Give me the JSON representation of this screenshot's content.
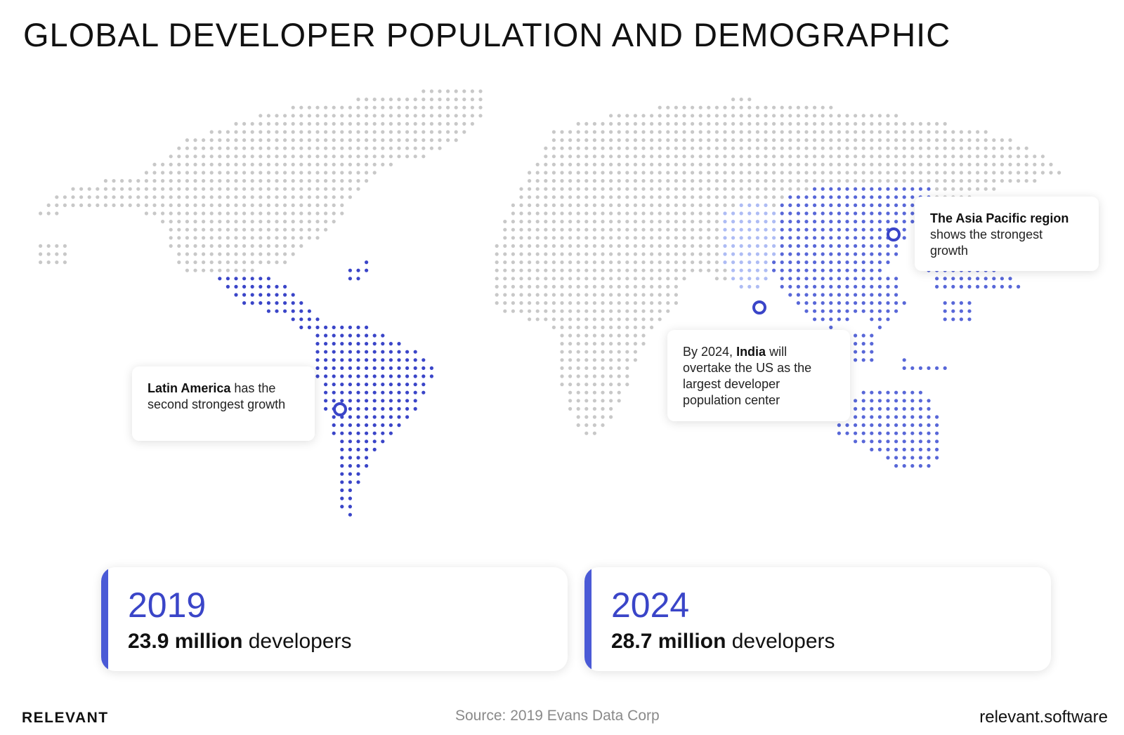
{
  "title": "GLOBAL DEVELOPER POPULATION AND DEMOGRAPHIC",
  "colors": {
    "land": "#c8c8c8",
    "latin_america": "#3a45c8",
    "asia_pacific": "#5867d8",
    "india": "#aebcf4",
    "accent_bar": "#4a5ad6"
  },
  "callouts": [
    {
      "bold": "Latin America",
      "text": " has the second strongest growth"
    },
    {
      "prefix": "By 2024, ",
      "bold": "India",
      "text": " will overtake the US as the largest developer population center"
    },
    {
      "bold": "The Asia Pacific region",
      "text": " shows the strongest growth"
    }
  ],
  "stats": [
    {
      "year": "2019",
      "value": "23.9 million",
      "unit": " developers"
    },
    {
      "year": "2024",
      "value": "28.7 million",
      "unit": " developers"
    }
  ],
  "footer": {
    "brand": "RELEVANT",
    "source": "Source: 2019 Evans Data Corp",
    "site": "relevant.software"
  }
}
